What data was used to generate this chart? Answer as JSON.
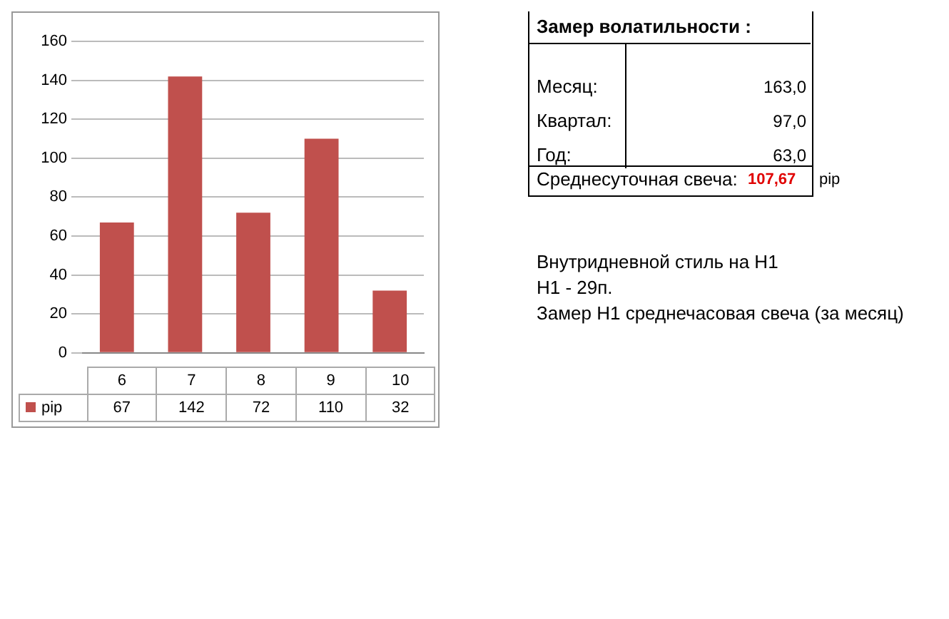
{
  "chart_data": {
    "type": "bar",
    "categories": [
      "6",
      "7",
      "8",
      "9",
      "10"
    ],
    "series": [
      {
        "name": "pip",
        "color": "#c0504d",
        "values": [
          67,
          142,
          72,
          110,
          32
        ]
      }
    ],
    "ylim": [
      0,
      160
    ],
    "yticks": [
      0,
      20,
      40,
      60,
      80,
      100,
      120,
      140,
      160
    ],
    "grid": "y",
    "legend": "bottom",
    "data_labels": true,
    "annotations": [
      "Замер  волатильности  :",
      "Месяц:",
      "163,0",
      "Квартал:",
      "97,0",
      "Год:",
      "63,0",
      "Среднесуточная свеча:",
      "107,67",
      "pip",
      "Внутридневной стиль на H1",
      "H1 - 29п.",
      "Замер H1 среднечасовая свеча (за месяц)"
    ]
  }
}
